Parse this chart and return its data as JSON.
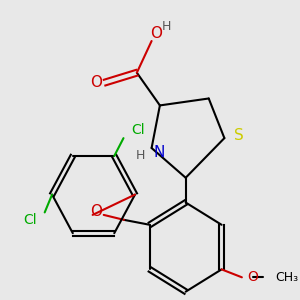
{
  "colors": {
    "S": "#cccc00",
    "N": "#0000cc",
    "O": "#cc0000",
    "Cl": "#00aa00",
    "H": "#555555",
    "bond": "#000000",
    "bg": "#e8e8e8"
  },
  "bg": "#e8e8e8"
}
